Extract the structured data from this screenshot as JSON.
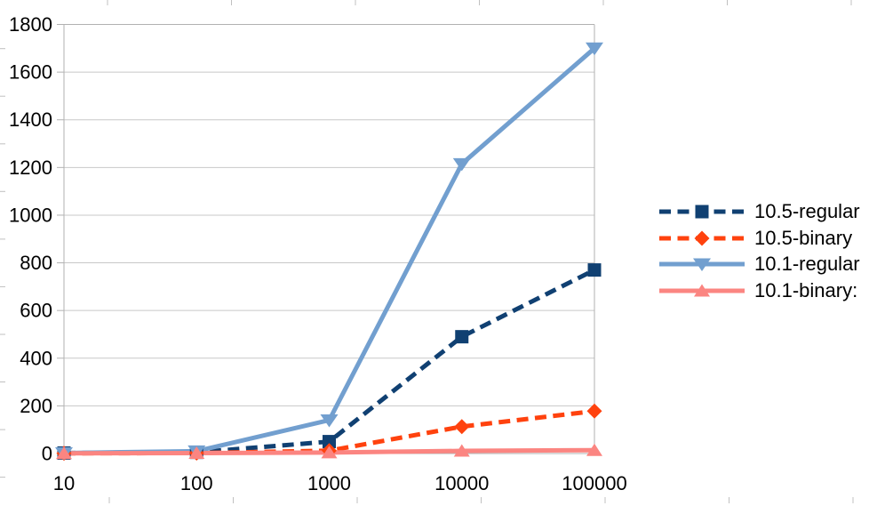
{
  "chart_data": {
    "type": "line",
    "title": "",
    "xlabel": "",
    "ylabel": "",
    "categories": [
      "10",
      "100",
      "1000",
      "10000",
      "100000"
    ],
    "yticks": [
      "0",
      "200",
      "400",
      "600",
      "800",
      "1000",
      "1200",
      "1400",
      "1600",
      "1800"
    ],
    "ylim": [
      0,
      1800
    ],
    "ytick_step": 200,
    "grid": "horizontal-major",
    "legend_position": "right",
    "series": [
      {
        "name": "10.5-regular",
        "color": "#104072",
        "line": "dashed",
        "marker": "square",
        "values": [
          2,
          5,
          50,
          490,
          770
        ]
      },
      {
        "name": "10.5-binary",
        "color": "#FF420E",
        "line": "dashed",
        "marker": "diamond",
        "values": [
          1,
          2,
          12,
          113,
          178
        ]
      },
      {
        "name": "10.1-regular",
        "color": "#729FCF",
        "line": "solid",
        "marker": "triangle-down",
        "values": [
          2,
          10,
          140,
          1215,
          1700
        ]
      },
      {
        "name": "10.1-binary:",
        "color": "#FB8581",
        "line": "solid",
        "marker": "triangle-up",
        "values": [
          1,
          2,
          4,
          11,
          14
        ]
      }
    ]
  },
  "colors": {
    "background": "#FFFFFF",
    "gridline": "#C8C8C8",
    "frame": "#B2B2B2",
    "edge_tick": "#C0C0C0",
    "text": "#000000"
  }
}
